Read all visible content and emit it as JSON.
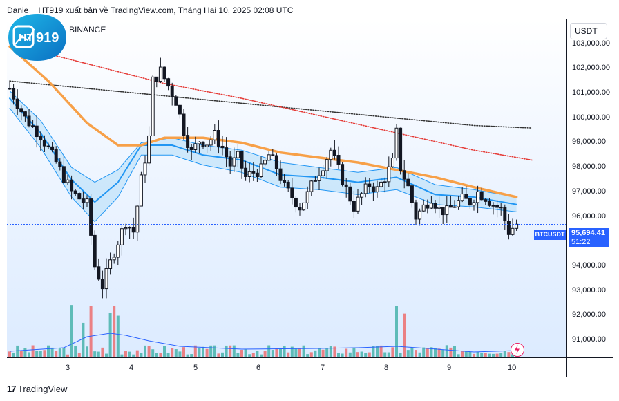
{
  "header": {
    "author_fragment_1": "Danie",
    "author_fragment_2": "HT919 xuất bản về TradingView.com, Tháng Hai 10, 2025 02:08 UTC",
    "exchange": "BINANCE",
    "logo_text": "919",
    "logo_letters": "HT"
  },
  "price_axis": {
    "currency": "USDT"
  },
  "last_price": {
    "symbol": "BTCUSDT",
    "price": "95,694.41",
    "countdown": "51:22"
  },
  "footer": {
    "brand": "TradingView"
  },
  "colors": {
    "up": "#26a69a",
    "down": "#ef5350",
    "candle": "#131722",
    "ema_orange": "#f7a048",
    "band_blue": "#2196f3",
    "red_dotted": "#e53935",
    "black_dotted": "#333333",
    "accent": "#2962ff"
  },
  "chart_data": {
    "type": "candlestick",
    "symbol": "BTCUSDT",
    "ylim": [
      90300,
      104000
    ],
    "y_ticks": [
      91000,
      92000,
      93000,
      94000,
      95000,
      96000,
      97000,
      98000,
      99000,
      100000,
      101000,
      102000,
      103000
    ],
    "y_tick_labels": [
      "91,000.00",
      "92,000.00",
      "93,000.00",
      "94,000.00",
      "95,000.00",
      "96,000.00",
      "97,000.00",
      "98,000.00",
      "99,000.00",
      "100,000.00",
      "101,000.00",
      "102,000.00",
      "103,000.00"
    ],
    "x_ticks": [
      "3",
      "4",
      "5",
      "6",
      "7",
      "8",
      "9",
      "10"
    ],
    "series_close_path": [
      [
        0,
        101200
      ],
      [
        4,
        100000
      ],
      [
        8,
        99300
      ],
      [
        12,
        98200
      ],
      [
        16,
        97000
      ],
      [
        20,
        96500
      ],
      [
        22,
        94000
      ],
      [
        24,
        93200
      ],
      [
        27,
        94600
      ],
      [
        30,
        95800
      ],
      [
        32,
        95400
      ],
      [
        34,
        97500
      ],
      [
        36,
        99200
      ],
      [
        37,
        101500
      ],
      [
        39,
        101900
      ],
      [
        41,
        101300
      ],
      [
        43,
        100700
      ],
      [
        45,
        99500
      ],
      [
        47,
        98600
      ],
      [
        49,
        99100
      ],
      [
        51,
        99000
      ],
      [
        53,
        99300
      ],
      [
        55,
        98800
      ],
      [
        57,
        98100
      ],
      [
        59,
        98400
      ],
      [
        61,
        97600
      ],
      [
        63,
        97800
      ],
      [
        65,
        97900
      ],
      [
        67,
        98500
      ],
      [
        69,
        98000
      ],
      [
        71,
        97200
      ],
      [
        73,
        96800
      ],
      [
        75,
        96400
      ],
      [
        77,
        96900
      ],
      [
        79,
        97600
      ],
      [
        81,
        98100
      ],
      [
        83,
        98700
      ],
      [
        85,
        97900
      ],
      [
        87,
        97100
      ],
      [
        89,
        96400
      ],
      [
        91,
        96900
      ],
      [
        93,
        97300
      ],
      [
        95,
        97100
      ],
      [
        97,
        97600
      ],
      [
        99,
        98200
      ],
      [
        100,
        99400
      ],
      [
        101,
        98000
      ],
      [
        103,
        97200
      ],
      [
        105,
        96000
      ],
      [
        107,
        96400
      ],
      [
        109,
        96800
      ],
      [
        111,
        96300
      ],
      [
        113,
        96200
      ],
      [
        115,
        96500
      ],
      [
        117,
        96700
      ],
      [
        119,
        96600
      ],
      [
        121,
        97000
      ],
      [
        123,
        96800
      ],
      [
        125,
        96500
      ],
      [
        127,
        96300
      ],
      [
        129,
        95400
      ],
      [
        131,
        95700
      ]
    ],
    "moving_average_orange": [
      [
        0,
        102900
      ],
      [
        10,
        101500
      ],
      [
        20,
        99800
      ],
      [
        28,
        98900
      ],
      [
        34,
        98900
      ],
      [
        40,
        99200
      ],
      [
        50,
        99200
      ],
      [
        60,
        99000
      ],
      [
        70,
        98600
      ],
      [
        80,
        98400
      ],
      [
        90,
        98200
      ],
      [
        100,
        97900
      ],
      [
        110,
        97600
      ],
      [
        120,
        97200
      ],
      [
        131,
        96800
      ]
    ],
    "band_upper": [
      [
        0,
        101100
      ],
      [
        8,
        99900
      ],
      [
        16,
        98000
      ],
      [
        22,
        97400
      ],
      [
        28,
        97900
      ],
      [
        34,
        99000
      ],
      [
        42,
        99200
      ],
      [
        50,
        98900
      ],
      [
        60,
        98700
      ],
      [
        70,
        98200
      ],
      [
        80,
        98000
      ],
      [
        90,
        97800
      ],
      [
        100,
        98000
      ],
      [
        110,
        97300
      ],
      [
        120,
        97100
      ],
      [
        131,
        96800
      ]
    ],
    "band_mid": [
      [
        0,
        100800
      ],
      [
        8,
        99400
      ],
      [
        16,
        97500
      ],
      [
        22,
        96600
      ],
      [
        28,
        97400
      ],
      [
        34,
        98900
      ],
      [
        42,
        98900
      ],
      [
        50,
        98500
      ],
      [
        60,
        98300
      ],
      [
        70,
        97700
      ],
      [
        80,
        97600
      ],
      [
        90,
        97400
      ],
      [
        100,
        97600
      ],
      [
        110,
        96900
      ],
      [
        120,
        96800
      ],
      [
        131,
        96500
      ]
    ],
    "band_lower": [
      [
        0,
        100400
      ],
      [
        8,
        98800
      ],
      [
        16,
        96800
      ],
      [
        22,
        95800
      ],
      [
        28,
        96800
      ],
      [
        34,
        98500
      ],
      [
        42,
        98500
      ],
      [
        50,
        98100
      ],
      [
        60,
        97800
      ],
      [
        70,
        97200
      ],
      [
        80,
        97100
      ],
      [
        90,
        96900
      ],
      [
        100,
        97100
      ],
      [
        110,
        96500
      ],
      [
        120,
        96400
      ],
      [
        131,
        96200
      ]
    ],
    "red_dotted": [
      [
        0,
        103000
      ],
      [
        20,
        102200
      ],
      [
        40,
        101400
      ],
      [
        60,
        100800
      ],
      [
        80,
        100100
      ],
      [
        100,
        99400
      ],
      [
        120,
        98700
      ],
      [
        135,
        98300
      ]
    ],
    "black_dotted": [
      [
        0,
        101500
      ],
      [
        20,
        101200
      ],
      [
        40,
        100900
      ],
      [
        60,
        100600
      ],
      [
        80,
        100300
      ],
      [
        100,
        100000
      ],
      [
        120,
        99700
      ],
      [
        135,
        99600
      ]
    ]
  }
}
